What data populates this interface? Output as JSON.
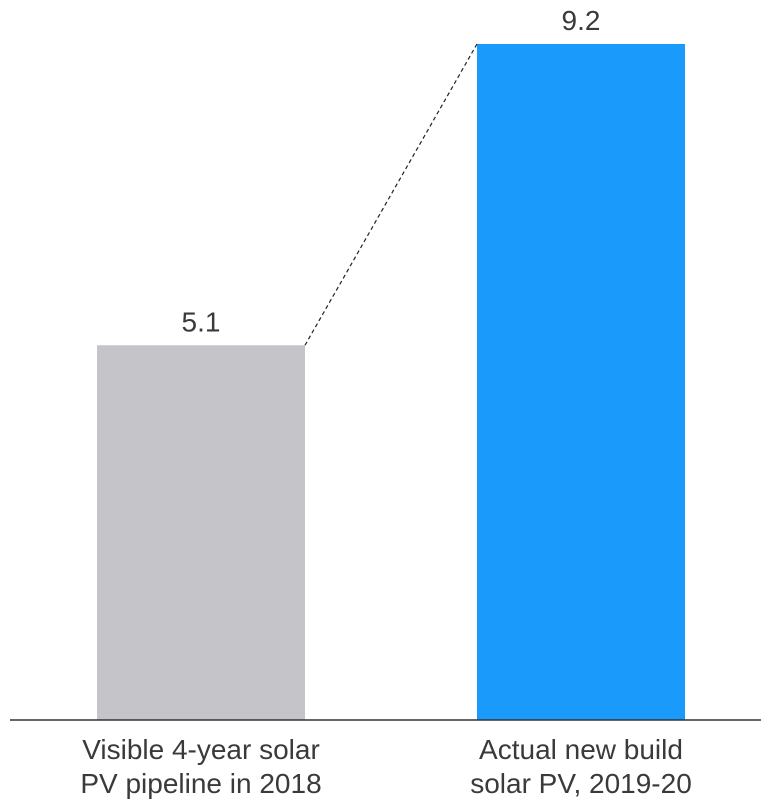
{
  "chart_data": {
    "type": "bar",
    "categories": [
      "Visible 4-year solar\nPV pipeline in 2018",
      "Actual new build\nsolar PV, 2019-20"
    ],
    "values": [
      5.1,
      9.2
    ],
    "value_labels": [
      "5.1",
      "9.2"
    ],
    "colors": [
      "#c4c4c9",
      "#1a9bfc"
    ],
    "connector": "dashed line from top of first bar to top of second bar",
    "ylim": [
      0,
      9.2
    ],
    "grid": false
  }
}
